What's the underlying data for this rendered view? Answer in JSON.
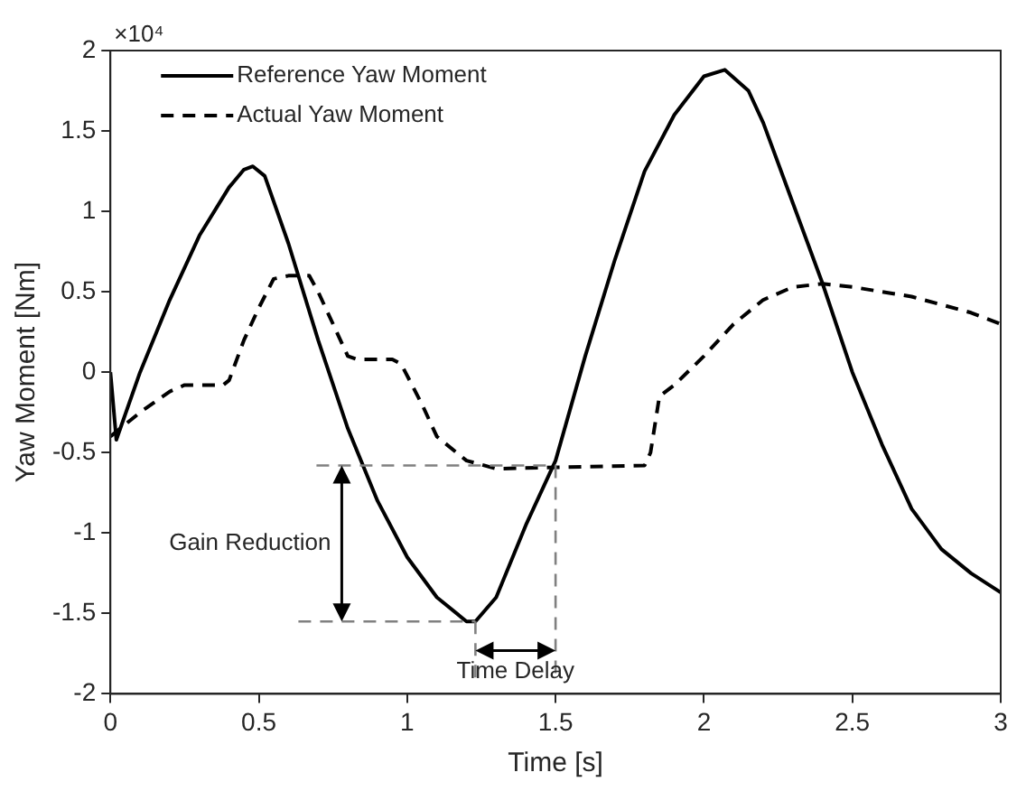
{
  "chart_data": {
    "type": "line",
    "xlabel": "Time [s]",
    "ylabel": "Yaw Moment [Nm]",
    "xlim": [
      0,
      3
    ],
    "ylim": [
      -2,
      2
    ],
    "xticks": [
      0,
      0.5,
      1,
      1.5,
      2,
      2.5,
      3
    ],
    "yticks": [
      -2,
      -1.5,
      -1,
      -0.5,
      0,
      0.5,
      1,
      1.5,
      2
    ],
    "grid": false,
    "legend": "top left",
    "marker": "none",
    "series": [
      {
        "name": "Reference Yaw Moment",
        "color": "#000000",
        "line_style": "solid",
        "x": [
          0,
          0.02,
          0.1,
          0.2,
          0.3,
          0.4,
          0.45,
          0.48,
          0.52,
          0.6,
          0.7,
          0.8,
          0.9,
          1.0,
          1.1,
          1.2,
          1.23,
          1.3,
          1.4,
          1.5,
          1.6,
          1.7,
          1.8,
          1.9,
          2.0,
          2.07,
          2.15,
          2.2,
          2.3,
          2.4,
          2.5,
          2.6,
          2.7,
          2.8,
          2.9,
          3.0
        ],
        "values": [
          0,
          -0.42,
          0.0,
          0.45,
          0.85,
          1.15,
          1.26,
          1.28,
          1.22,
          0.8,
          0.2,
          -0.35,
          -0.8,
          -1.15,
          -1.4,
          -1.55,
          -1.55,
          -1.4,
          -0.95,
          -0.55,
          0.1,
          0.7,
          1.25,
          1.6,
          1.84,
          1.88,
          1.75,
          1.55,
          1.05,
          0.55,
          0.0,
          -0.45,
          -0.85,
          -1.1,
          -1.25,
          -1.37
        ]
      },
      {
        "name": "Actual Yaw Moment",
        "color": "#000000",
        "line_style": "dashed",
        "x": [
          0,
          0.1,
          0.2,
          0.25,
          0.38,
          0.4,
          0.45,
          0.5,
          0.55,
          0.6,
          0.67,
          0.7,
          0.75,
          0.8,
          0.83,
          0.95,
          0.98,
          1.05,
          1.1,
          1.2,
          1.3,
          1.8,
          1.82,
          1.85,
          1.9,
          2.0,
          2.1,
          2.2,
          2.3,
          2.4,
          2.5,
          2.6,
          2.7,
          2.8,
          2.9,
          3.0
        ],
        "values": [
          -0.4,
          -0.25,
          -0.12,
          -0.08,
          -0.08,
          -0.05,
          0.2,
          0.4,
          0.58,
          0.6,
          0.6,
          0.5,
          0.3,
          0.1,
          0.08,
          0.08,
          0.05,
          -0.2,
          -0.4,
          -0.55,
          -0.6,
          -0.58,
          -0.5,
          -0.15,
          -0.08,
          0.1,
          0.3,
          0.45,
          0.53,
          0.55,
          0.53,
          0.5,
          0.47,
          0.42,
          0.37,
          0.3
        ]
      }
    ],
    "ref_lines": [
      {
        "axis": "y",
        "value": -0.58,
        "color": "#808080",
        "line_style": "dashed"
      },
      {
        "axis": "y",
        "value": -1.55,
        "color": "#808080",
        "line_style": "dashed"
      },
      {
        "axis": "x",
        "value": 1.5,
        "color": "#808080",
        "line_style": "dashed"
      },
      {
        "axis": "x",
        "value": 1.23,
        "color": "#808080",
        "line_style": "dashed"
      }
    ],
    "annotations": [
      "×10⁴",
      "Gain Reduction",
      "Time Delay"
    ]
  }
}
